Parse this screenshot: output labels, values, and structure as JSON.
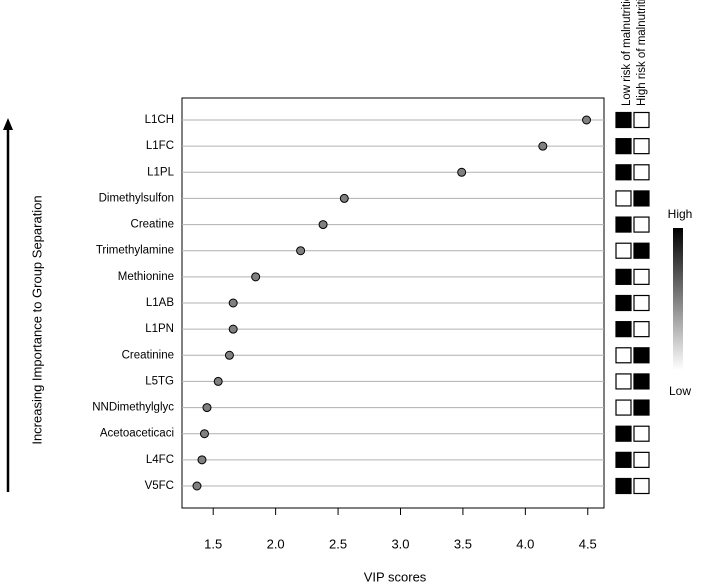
{
  "chart_data": {
    "type": "dot",
    "xlabel": "VIP scores",
    "ylabel": "Increasing Importance to Group Separation",
    "categories": [
      "L1CH",
      "L1FC",
      "L1PL",
      "Dimethylsulfon",
      "Creatine",
      "Trimethylamine",
      "Methionine",
      "L1AB",
      "L1PN",
      "Creatinine",
      "L5TG",
      "NNDimethylglyc",
      "Acetoaceticaci",
      "L4FC",
      "V5FC"
    ],
    "values": [
      4.49,
      4.14,
      3.49,
      2.55,
      2.38,
      2.2,
      1.84,
      1.66,
      1.66,
      1.63,
      1.54,
      1.45,
      1.43,
      1.41,
      1.37
    ],
    "color": "#808080",
    "xlim": [
      1.25,
      4.63
    ],
    "xticks": [
      1.5,
      {
        "value": 2,
        "label": "2.0"
      },
      2.5,
      {
        "value": 3,
        "label": "3.0"
      },
      3.5,
      {
        "value": 4,
        "label": "4.0"
      },
      4.5
    ],
    "grid": true,
    "heatmap": {
      "columns": [
        "Low risk of malnutrition",
        "High risk of malnutrition"
      ],
      "values": [
        [
          1,
          0
        ],
        [
          1,
          0
        ],
        [
          1,
          0
        ],
        [
          0,
          1
        ],
        [
          1,
          0
        ],
        [
          0,
          1
        ],
        [
          1,
          0
        ],
        [
          1,
          0
        ],
        [
          1,
          0
        ],
        [
          0,
          1
        ],
        [
          0,
          1
        ],
        [
          0,
          1
        ],
        [
          1,
          0
        ],
        [
          1,
          0
        ],
        [
          1,
          0
        ]
      ],
      "scale_labels": [
        "High",
        "Low"
      ]
    }
  }
}
